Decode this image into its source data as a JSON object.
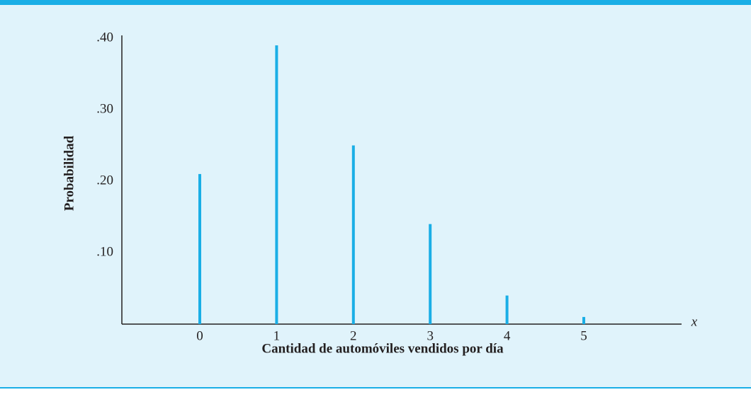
{
  "chart_data": {
    "type": "stem",
    "categories": [
      "0",
      "1",
      "2",
      "3",
      "4",
      "5"
    ],
    "values": [
      0.21,
      0.39,
      0.25,
      0.14,
      0.04,
      0.01
    ],
    "color": "#1aaee6",
    "ylim": [
      0,
      0.4
    ],
    "yticks": [
      {
        "value": 0.1,
        "label": ".10"
      },
      {
        "value": 0.2,
        "label": ".20"
      },
      {
        "value": 0.3,
        "label": ".30"
      },
      {
        "value": 0.4,
        "label": ".40"
      }
    ],
    "y_label": "Probabilidad",
    "x_label": "Cantidad de automóviles vendidos por día",
    "x_axis_symbol": "x",
    "grid": false
  }
}
